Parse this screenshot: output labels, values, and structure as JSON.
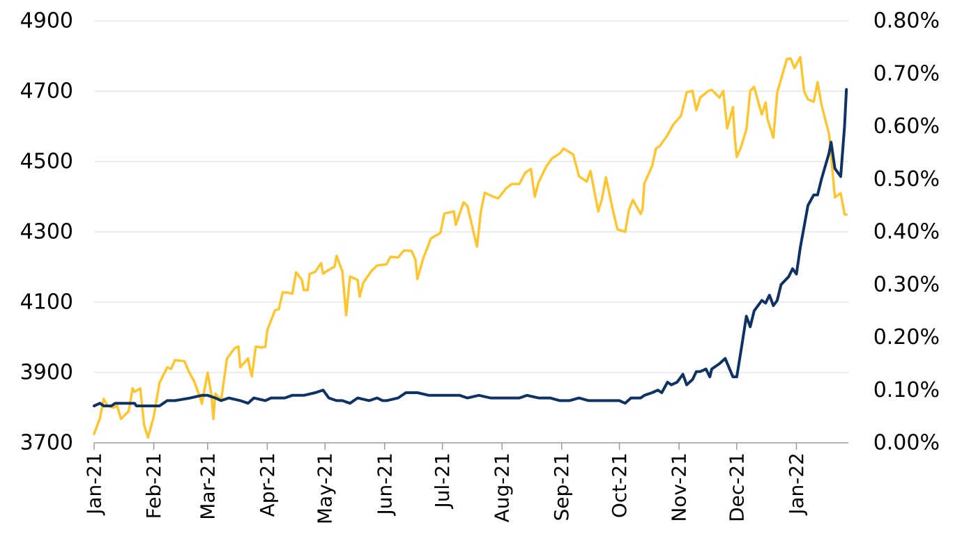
{
  "chart_data": {
    "type": "line",
    "title": "",
    "xlabel": "",
    "ylabel": "",
    "y2label": "",
    "x_tick_labels": [
      "Jan-21",
      "Feb-21",
      "Mar-21",
      "Apr-21",
      "May-21",
      "Jun-21",
      "Jul-21",
      "Aug-21",
      "Sep-21",
      "Oct-21",
      "Nov-21",
      "Dec-21",
      "Jan-22"
    ],
    "x_tick_dates": [
      "2021-01-01",
      "2021-02-01",
      "2021-03-01",
      "2021-04-01",
      "2021-05-01",
      "2021-06-01",
      "2021-07-01",
      "2021-08-01",
      "2021-09-01",
      "2021-10-01",
      "2021-11-01",
      "2021-12-01",
      "2022-01-01"
    ],
    "xlim": [
      "2021-01-01",
      "2022-01-28"
    ],
    "ylim_left": [
      3700,
      4900
    ],
    "left_ticks": [
      "3700",
      "3900",
      "4100",
      "4300",
      "4500",
      "4700",
      "4900"
    ],
    "ylim_right": [
      0.0,
      0.8
    ],
    "right_ticks": [
      "0.00%",
      "0.10%",
      "0.20%",
      "0.30%",
      "0.40%",
      "0.50%",
      "0.60%",
      "0.70%",
      "0.80%"
    ],
    "grid": true,
    "legend": "none",
    "series": [
      {
        "axis": "left",
        "color": "#FEC52E",
        "points": [
          [
            "2021-01-01",
            3725
          ],
          [
            "2021-01-04",
            3770
          ],
          [
            "2021-01-06",
            3825
          ],
          [
            "2021-01-08",
            3805
          ],
          [
            "2021-01-11",
            3800
          ],
          [
            "2021-01-13",
            3805
          ],
          [
            "2021-01-15",
            3768
          ],
          [
            "2021-01-19",
            3790
          ],
          [
            "2021-01-21",
            3855
          ],
          [
            "2021-01-22",
            3845
          ],
          [
            "2021-01-25",
            3855
          ],
          [
            "2021-01-27",
            3750
          ],
          [
            "2021-01-29",
            3715
          ],
          [
            "2021-02-01",
            3775
          ],
          [
            "2021-02-04",
            3870
          ],
          [
            "2021-02-08",
            3915
          ],
          [
            "2021-02-10",
            3910
          ],
          [
            "2021-02-12",
            3935
          ],
          [
            "2021-02-17",
            3932
          ],
          [
            "2021-02-19",
            3905
          ],
          [
            "2021-02-22",
            3875
          ],
          [
            "2021-02-25",
            3830
          ],
          [
            "2021-02-26",
            3811
          ],
          [
            "2021-03-01",
            3900
          ],
          [
            "2021-03-03",
            3835
          ],
          [
            "2021-03-04",
            3768
          ],
          [
            "2021-03-05",
            3840
          ],
          [
            "2021-03-08",
            3821
          ],
          [
            "2021-03-10",
            3898
          ],
          [
            "2021-03-11",
            3939
          ],
          [
            "2021-03-15",
            3969
          ],
          [
            "2021-03-17",
            3974
          ],
          [
            "2021-03-18",
            3915
          ],
          [
            "2021-03-22",
            3940
          ],
          [
            "2021-03-23",
            3910
          ],
          [
            "2021-03-24",
            3889
          ],
          [
            "2021-03-26",
            3974
          ],
          [
            "2021-03-29",
            3971
          ],
          [
            "2021-03-31",
            3973
          ],
          [
            "2021-04-01",
            4020
          ],
          [
            "2021-04-05",
            4077
          ],
          [
            "2021-04-07",
            4080
          ],
          [
            "2021-04-09",
            4128
          ],
          [
            "2021-04-12",
            4127
          ],
          [
            "2021-04-14",
            4124
          ],
          [
            "2021-04-16",
            4185
          ],
          [
            "2021-04-19",
            4163
          ],
          [
            "2021-04-20",
            4134
          ],
          [
            "2021-04-22",
            4134
          ],
          [
            "2021-04-23",
            4180
          ],
          [
            "2021-04-26",
            4187
          ],
          [
            "2021-04-29",
            4211
          ],
          [
            "2021-04-30",
            4181
          ],
          [
            "2021-05-03",
            4192
          ],
          [
            "2021-05-06",
            4201
          ],
          [
            "2021-05-07",
            4232
          ],
          [
            "2021-05-10",
            4188
          ],
          [
            "2021-05-12",
            4063
          ],
          [
            "2021-05-14",
            4173
          ],
          [
            "2021-05-18",
            4163
          ],
          [
            "2021-05-19",
            4116
          ],
          [
            "2021-05-21",
            4156
          ],
          [
            "2021-05-25",
            4188
          ],
          [
            "2021-05-28",
            4204
          ],
          [
            "2021-06-02",
            4208
          ],
          [
            "2021-06-04",
            4229
          ],
          [
            "2021-06-08",
            4227
          ],
          [
            "2021-06-11",
            4247
          ],
          [
            "2021-06-15",
            4246
          ],
          [
            "2021-06-17",
            4221
          ],
          [
            "2021-06-18",
            4166
          ],
          [
            "2021-06-21",
            4224
          ],
          [
            "2021-06-24",
            4266
          ],
          [
            "2021-06-25",
            4281
          ],
          [
            "2021-06-30",
            4297
          ],
          [
            "2021-07-02",
            4352
          ],
          [
            "2021-07-07",
            4358
          ],
          [
            "2021-07-08",
            4320
          ],
          [
            "2021-07-12",
            4384
          ],
          [
            "2021-07-14",
            4374
          ],
          [
            "2021-07-16",
            4327
          ],
          [
            "2021-07-19",
            4258
          ],
          [
            "2021-07-21",
            4358
          ],
          [
            "2021-07-23",
            4411
          ],
          [
            "2021-07-27",
            4401
          ],
          [
            "2021-07-30",
            4395
          ],
          [
            "2021-08-03",
            4423
          ],
          [
            "2021-08-06",
            4436
          ],
          [
            "2021-08-10",
            4436
          ],
          [
            "2021-08-13",
            4468
          ],
          [
            "2021-08-16",
            4479
          ],
          [
            "2021-08-18",
            4400
          ],
          [
            "2021-08-20",
            4441
          ],
          [
            "2021-08-24",
            4486
          ],
          [
            "2021-08-27",
            4509
          ],
          [
            "2021-08-31",
            4523
          ],
          [
            "2021-09-02",
            4537
          ],
          [
            "2021-09-07",
            4520
          ],
          [
            "2021-09-10",
            4458
          ],
          [
            "2021-09-14",
            4443
          ],
          [
            "2021-09-16",
            4473
          ],
          [
            "2021-09-20",
            4358
          ],
          [
            "2021-09-22",
            4395
          ],
          [
            "2021-09-24",
            4455
          ],
          [
            "2021-09-28",
            4352
          ],
          [
            "2021-09-30",
            4307
          ],
          [
            "2021-10-04",
            4300
          ],
          [
            "2021-10-06",
            4363
          ],
          [
            "2021-10-08",
            4391
          ],
          [
            "2021-10-12",
            4351
          ],
          [
            "2021-10-13",
            4364
          ],
          [
            "2021-10-14",
            4438
          ],
          [
            "2021-10-18",
            4487
          ],
          [
            "2021-10-20",
            4537
          ],
          [
            "2021-10-22",
            4544
          ],
          [
            "2021-10-26",
            4575
          ],
          [
            "2021-10-29",
            4605
          ],
          [
            "2021-11-02",
            4630
          ],
          [
            "2021-11-05",
            4697
          ],
          [
            "2021-11-08",
            4701
          ],
          [
            "2021-11-10",
            4646
          ],
          [
            "2021-11-12",
            4682
          ],
          [
            "2021-11-16",
            4700
          ],
          [
            "2021-11-18",
            4704
          ],
          [
            "2021-11-22",
            4682
          ],
          [
            "2021-11-24",
            4701
          ],
          [
            "2021-11-26",
            4594
          ],
          [
            "2021-11-29",
            4655
          ],
          [
            "2021-11-30",
            4567
          ],
          [
            "2021-12-01",
            4513
          ],
          [
            "2021-12-03",
            4538
          ],
          [
            "2021-12-06",
            4591
          ],
          [
            "2021-12-08",
            4701
          ],
          [
            "2021-12-10",
            4712
          ],
          [
            "2021-12-14",
            4634
          ],
          [
            "2021-12-16",
            4668
          ],
          [
            "2021-12-17",
            4620
          ],
          [
            "2021-12-20",
            4568
          ],
          [
            "2021-12-22",
            4696
          ],
          [
            "2021-12-27",
            4791
          ],
          [
            "2021-12-29",
            4793
          ],
          [
            "2021-12-31",
            4766
          ],
          [
            "2022-01-03",
            4797
          ],
          [
            "2022-01-05",
            4700
          ],
          [
            "2022-01-07",
            4677
          ],
          [
            "2022-01-10",
            4670
          ],
          [
            "2022-01-12",
            4726
          ],
          [
            "2022-01-14",
            4662
          ],
          [
            "2022-01-18",
            4577
          ],
          [
            "2022-01-21",
            4398
          ],
          [
            "2022-01-24",
            4410
          ],
          [
            "2022-01-26",
            4350
          ],
          [
            "2022-01-27",
            4349
          ]
        ]
      },
      {
        "axis": "right",
        "color": "#0D3263",
        "points": [
          [
            "2021-01-01",
            0.07
          ],
          [
            "2021-01-04",
            0.075
          ],
          [
            "2021-01-06",
            0.07
          ],
          [
            "2021-01-10",
            0.07
          ],
          [
            "2021-01-12",
            0.075
          ],
          [
            "2021-01-22",
            0.075
          ],
          [
            "2021-01-23",
            0.07
          ],
          [
            "2021-02-04",
            0.07
          ],
          [
            "2021-02-08",
            0.08
          ],
          [
            "2021-02-12",
            0.08
          ],
          [
            "2021-02-20",
            0.085
          ],
          [
            "2021-02-26",
            0.09
          ],
          [
            "2021-03-01",
            0.09
          ],
          [
            "2021-03-05",
            0.085
          ],
          [
            "2021-03-08",
            0.08
          ],
          [
            "2021-03-12",
            0.085
          ],
          [
            "2021-03-18",
            0.08
          ],
          [
            "2021-03-22",
            0.075
          ],
          [
            "2021-03-25",
            0.085
          ],
          [
            "2021-03-31",
            0.08
          ],
          [
            "2021-04-03",
            0.085
          ],
          [
            "2021-04-10",
            0.085
          ],
          [
            "2021-04-14",
            0.09
          ],
          [
            "2021-04-20",
            0.09
          ],
          [
            "2021-04-26",
            0.095
          ],
          [
            "2021-04-30",
            0.1
          ],
          [
            "2021-05-03",
            0.085
          ],
          [
            "2021-05-07",
            0.08
          ],
          [
            "2021-05-10",
            0.08
          ],
          [
            "2021-05-14",
            0.075
          ],
          [
            "2021-05-18",
            0.085
          ],
          [
            "2021-05-24",
            0.08
          ],
          [
            "2021-05-28",
            0.085
          ],
          [
            "2021-05-31",
            0.08
          ],
          [
            "2021-06-02",
            0.08
          ],
          [
            "2021-06-08",
            0.085
          ],
          [
            "2021-06-12",
            0.095
          ],
          [
            "2021-06-18",
            0.095
          ],
          [
            "2021-06-24",
            0.09
          ],
          [
            "2021-06-30",
            0.09
          ],
          [
            "2021-07-05",
            0.09
          ],
          [
            "2021-07-10",
            0.09
          ],
          [
            "2021-07-14",
            0.085
          ],
          [
            "2021-07-20",
            0.09
          ],
          [
            "2021-07-26",
            0.085
          ],
          [
            "2021-07-30",
            0.085
          ],
          [
            "2021-08-02",
            0.085
          ],
          [
            "2021-08-06",
            0.085
          ],
          [
            "2021-08-10",
            0.085
          ],
          [
            "2021-08-14",
            0.09
          ],
          [
            "2021-08-20",
            0.085
          ],
          [
            "2021-08-26",
            0.085
          ],
          [
            "2021-08-31",
            0.08
          ],
          [
            "2021-09-05",
            0.08
          ],
          [
            "2021-09-10",
            0.085
          ],
          [
            "2021-09-15",
            0.08
          ],
          [
            "2021-09-20",
            0.08
          ],
          [
            "2021-09-25",
            0.08
          ],
          [
            "2021-09-30",
            0.08
          ],
          [
            "2021-10-01",
            0.08
          ],
          [
            "2021-10-04",
            0.075
          ],
          [
            "2021-10-07",
            0.085
          ],
          [
            "2021-10-12",
            0.085
          ],
          [
            "2021-10-14",
            0.09
          ],
          [
            "2021-10-18",
            0.095
          ],
          [
            "2021-10-21",
            0.1
          ],
          [
            "2021-10-23",
            0.095
          ],
          [
            "2021-10-26",
            0.115
          ],
          [
            "2021-10-28",
            0.11
          ],
          [
            "2021-10-31",
            0.115
          ],
          [
            "2021-11-03",
            0.13
          ],
          [
            "2021-11-05",
            0.11
          ],
          [
            "2021-11-08",
            0.12
          ],
          [
            "2021-11-10",
            0.135
          ],
          [
            "2021-11-12",
            0.135
          ],
          [
            "2021-11-15",
            0.14
          ],
          [
            "2021-11-17",
            0.125
          ],
          [
            "2021-11-18",
            0.14
          ],
          [
            "2021-11-22",
            0.15
          ],
          [
            "2021-11-25",
            0.16
          ],
          [
            "2021-11-29",
            0.125
          ],
          [
            "2021-12-01",
            0.125
          ],
          [
            "2021-12-03",
            0.17
          ],
          [
            "2021-12-06",
            0.24
          ],
          [
            "2021-12-08",
            0.22
          ],
          [
            "2021-12-10",
            0.25
          ],
          [
            "2021-12-14",
            0.27
          ],
          [
            "2021-12-16",
            0.265
          ],
          [
            "2021-12-18",
            0.28
          ],
          [
            "2021-12-20",
            0.26
          ],
          [
            "2021-12-22",
            0.27
          ],
          [
            "2021-12-24",
            0.3
          ],
          [
            "2021-12-28",
            0.315
          ],
          [
            "2021-12-30",
            0.33
          ],
          [
            "2022-01-01",
            0.32
          ],
          [
            "2022-01-03",
            0.37
          ],
          [
            "2022-01-05",
            0.41
          ],
          [
            "2022-01-07",
            0.45
          ],
          [
            "2022-01-10",
            0.47
          ],
          [
            "2022-01-12",
            0.47
          ],
          [
            "2022-01-14",
            0.5
          ],
          [
            "2022-01-18",
            0.55
          ],
          [
            "2022-01-19",
            0.57
          ],
          [
            "2022-01-21",
            0.52
          ],
          [
            "2022-01-24",
            0.505
          ],
          [
            "2022-01-26",
            0.6
          ],
          [
            "2022-01-27",
            0.67
          ]
        ]
      }
    ]
  }
}
